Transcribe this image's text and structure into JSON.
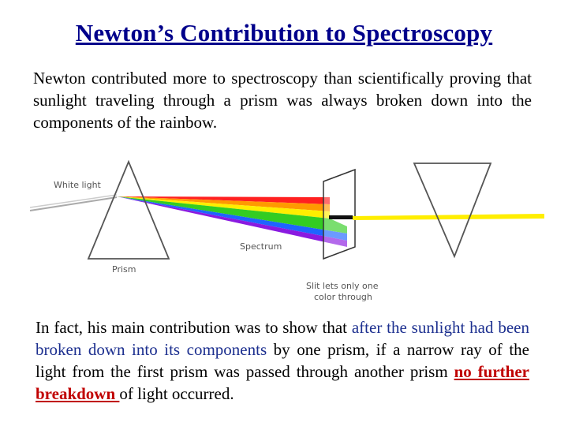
{
  "title": "Newton’s Contribution to Spectroscopy",
  "intro": "Newton contributed more to spectroscopy than scientifically proving that sunlight traveling through a prism was always broken down into the components of the rainbow.",
  "diagram": {
    "white_light_label": "White light",
    "prism_label": "Prism",
    "spectrum_label": "Spectrum",
    "slit_label_line1": "Slit lets only one",
    "slit_label_line2": "color through"
  },
  "conclusion": {
    "part1": "In fact, his main contribution was to show that ",
    "part2_highlight": "after the sunlight had been broken down into its components",
    "part3": " by one prism, if a narrow ray of the light from the first prism was passed through another prism ",
    "part4_emphasis": "no further breakdown ",
    "part5": "of light occurred."
  },
  "colors": {
    "title": "#00008b",
    "highlight": "#1c2f8f",
    "emphasis": "#c00000",
    "beam": "#ffee00"
  }
}
